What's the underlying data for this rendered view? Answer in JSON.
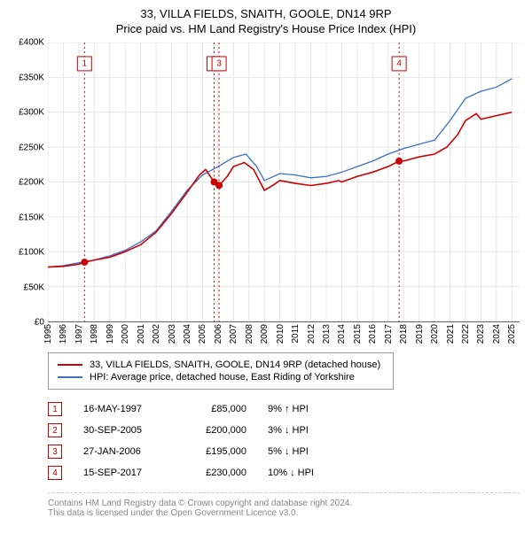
{
  "title": "33, VILLA FIELDS, SNAITH, GOOLE, DN14 9RP",
  "subtitle": "Price paid vs. HM Land Registry's House Price Index (HPI)",
  "chart": {
    "type": "line",
    "background_color": "#ffffff",
    "grid_color": "#e6e6e6",
    "axis_color": "#666666",
    "tick_fontsize": 10,
    "x": {
      "min": 1995,
      "max": 2025.5,
      "ticks": [
        1995,
        1996,
        1997,
        1998,
        1999,
        2000,
        2001,
        2002,
        2003,
        2004,
        2005,
        2006,
        2007,
        2008,
        2009,
        2010,
        2011,
        2012,
        2013,
        2014,
        2015,
        2016,
        2017,
        2018,
        2019,
        2020,
        2021,
        2022,
        2023,
        2024,
        2025
      ]
    },
    "y": {
      "min": 0,
      "max": 400000,
      "tick_step": 50000,
      "labels": [
        "£0",
        "£50K",
        "£100K",
        "£150K",
        "£200K",
        "£250K",
        "£300K",
        "£350K",
        "£400K"
      ]
    },
    "series": [
      {
        "key": "property",
        "label": "33, VILLA FIELDS, SNAITH, GOOLE, DN14 9RP (detached house)",
        "color": "#cc0000",
        "line_width": 1.6,
        "data": [
          [
            1995,
            78000
          ],
          [
            1996,
            79000
          ],
          [
            1997,
            82000
          ],
          [
            1997.37,
            85000
          ],
          [
            1998,
            88000
          ],
          [
            1999,
            92000
          ],
          [
            2000,
            100000
          ],
          [
            2001,
            110000
          ],
          [
            2002,
            128000
          ],
          [
            2003,
            155000
          ],
          [
            2004,
            185000
          ],
          [
            2004.8,
            210000
          ],
          [
            2005.2,
            218000
          ],
          [
            2005.75,
            200000
          ],
          [
            2006.07,
            195000
          ],
          [
            2006.6,
            208000
          ],
          [
            2007,
            222000
          ],
          [
            2007.7,
            228000
          ],
          [
            2008.3,
            218000
          ],
          [
            2009,
            188000
          ],
          [
            2009.6,
            196000
          ],
          [
            2010,
            202000
          ],
          [
            2011,
            198000
          ],
          [
            2012,
            195000
          ],
          [
            2013,
            198000
          ],
          [
            2013.8,
            202000
          ],
          [
            2014,
            200000
          ],
          [
            2015,
            208000
          ],
          [
            2016,
            214000
          ],
          [
            2017,
            222000
          ],
          [
            2017.71,
            230000
          ],
          [
            2018,
            230000
          ],
          [
            2019,
            236000
          ],
          [
            2020,
            240000
          ],
          [
            2020.8,
            250000
          ],
          [
            2021.5,
            268000
          ],
          [
            2022,
            288000
          ],
          [
            2022.7,
            298000
          ],
          [
            2023,
            290000
          ],
          [
            2024,
            295000
          ],
          [
            2025,
            300000
          ]
        ]
      },
      {
        "key": "hpi",
        "label": "HPI: Average price, detached house, East Riding of Yorkshire",
        "color": "#3a6fce",
        "line_width": 1.3,
        "data": [
          [
            1995,
            78000
          ],
          [
            1996,
            80000
          ],
          [
            1997,
            84000
          ],
          [
            1998,
            88000
          ],
          [
            1999,
            94000
          ],
          [
            2000,
            102000
          ],
          [
            2001,
            114000
          ],
          [
            2002,
            130000
          ],
          [
            2003,
            158000
          ],
          [
            2004,
            188000
          ],
          [
            2005,
            210000
          ],
          [
            2006,
            222000
          ],
          [
            2007,
            235000
          ],
          [
            2007.8,
            240000
          ],
          [
            2008.5,
            222000
          ],
          [
            2009,
            202000
          ],
          [
            2010,
            212000
          ],
          [
            2011,
            210000
          ],
          [
            2012,
            206000
          ],
          [
            2013,
            208000
          ],
          [
            2014,
            214000
          ],
          [
            2015,
            222000
          ],
          [
            2016,
            230000
          ],
          [
            2017,
            240000
          ],
          [
            2018,
            248000
          ],
          [
            2019,
            254000
          ],
          [
            2020,
            260000
          ],
          [
            2021,
            288000
          ],
          [
            2022,
            320000
          ],
          [
            2023,
            330000
          ],
          [
            2024,
            336000
          ],
          [
            2025,
            348000
          ]
        ]
      }
    ],
    "event_markers": [
      {
        "n": "1",
        "x": 1997.37,
        "y": 85000
      },
      {
        "n": "2",
        "x": 2005.75,
        "y": 200000
      },
      {
        "n": "3",
        "x": 2006.07,
        "y": 195000
      },
      {
        "n": "4",
        "x": 2017.71,
        "y": 230000
      }
    ],
    "event_line_color": "#cc0000",
    "event_dot_color": "#cc0000"
  },
  "legend": {
    "items": [
      {
        "label": "33, VILLA FIELDS, SNAITH, GOOLE, DN14 9RP (detached house)",
        "color": "#cc0000"
      },
      {
        "label": "HPI: Average price, detached house, East Riding of Yorkshire",
        "color": "#3a6fce"
      }
    ]
  },
  "transactions": [
    {
      "n": "1",
      "date": "16-MAY-1997",
      "price": "£85,000",
      "delta": "9% ↑ HPI"
    },
    {
      "n": "2",
      "date": "30-SEP-2005",
      "price": "£200,000",
      "delta": "3% ↓ HPI"
    },
    {
      "n": "3",
      "date": "27-JAN-2006",
      "price": "£195,000",
      "delta": "5% ↓ HPI"
    },
    {
      "n": "4",
      "date": "15-SEP-2017",
      "price": "£230,000",
      "delta": "10% ↓ HPI"
    }
  ],
  "footer": {
    "line1": "Contains HM Land Registry data © Crown copyright and database right 2024.",
    "line2": "This data is licensed under the Open Government Licence v3.0."
  }
}
